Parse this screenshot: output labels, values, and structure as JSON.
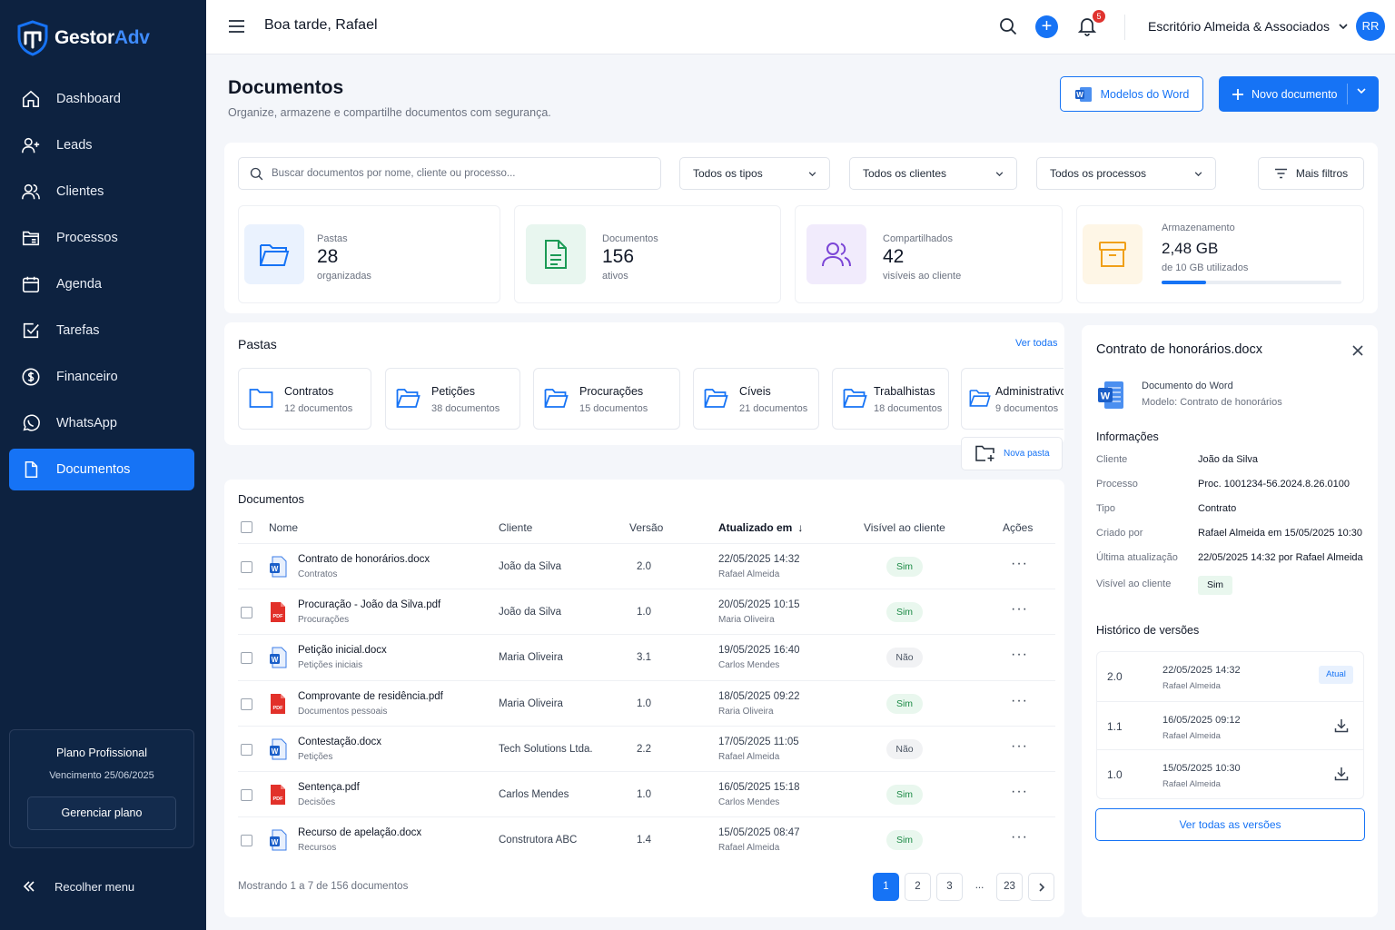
{
  "brand": {
    "name_a": "Gestor",
    "name_b": "Adv",
    "accent": "#1673f5",
    "sidebar_bg": "#0d2240"
  },
  "sidebar": {
    "items": [
      {
        "label": "Dashboard",
        "icon": "home-icon"
      },
      {
        "label": "Leads",
        "icon": "user-plus-icon"
      },
      {
        "label": "Clientes",
        "icon": "users-icon"
      },
      {
        "label": "Processos",
        "icon": "folder-icon"
      },
      {
        "label": "Agenda",
        "icon": "calendar-icon"
      },
      {
        "label": "Tarefas",
        "icon": "checkbox-icon"
      },
      {
        "label": "Financeiro",
        "icon": "dollar-icon"
      },
      {
        "label": "WhatsApp",
        "icon": "whatsapp-icon"
      },
      {
        "label": "Documentos",
        "icon": "document-icon",
        "active": true
      }
    ],
    "plan": {
      "title": "Plano Profissional",
      "due": "Vencimento 25/06/2025",
      "button": "Gerenciar plano"
    },
    "collapse": "Recolher menu"
  },
  "topbar": {
    "greeting": "Boa tarde, Rafael",
    "notifications": "5",
    "firm": "Escritório Almeida & Associados",
    "avatar": "RR"
  },
  "page": {
    "title": "Documentos",
    "subtitle": "Organize, armazene e compartilhe documentos com segurança.",
    "btn_word": "Modelos do Word",
    "btn_new": "Novo documento"
  },
  "filters": {
    "search_placeholder": "Buscar documentos por nome, cliente ou processo...",
    "types": "Todos os tipos",
    "clients": "Todos os clientes",
    "processes": "Todos os processos",
    "more": "Mais filtros"
  },
  "stats": [
    {
      "label": "Pastas",
      "value": "28",
      "sub": "organizadas"
    },
    {
      "label": "Documentos",
      "value": "156",
      "sub": "ativos"
    },
    {
      "label": "Compartilhados",
      "value": "42",
      "sub": "visíveis ao cliente"
    },
    {
      "label": "Armazenamento",
      "value": "2,48 GB",
      "sub": "de 10 GB utilizados",
      "progress": 0.248
    }
  ],
  "folders": {
    "title": "Pastas",
    "see_all": "Ver todas",
    "new_folder": "Nova pasta",
    "items": [
      {
        "name": "Contratos",
        "count": "12 documentos"
      },
      {
        "name": "Petições",
        "count": "38 documentos"
      },
      {
        "name": "Procurações",
        "count": "15 documentos"
      },
      {
        "name": "Cíveis",
        "count": "21 documentos"
      },
      {
        "name": "Trabalhistas",
        "count": "18 documentos"
      },
      {
        "name": "Administrativo",
        "count": "9 documentos"
      }
    ]
  },
  "documents": {
    "title": "Documentos",
    "columns": {
      "name": "Nome",
      "client": "Cliente",
      "version": "Versão",
      "updated": "Atualizado em",
      "visible": "Visível ao cliente",
      "actions": "Ações"
    },
    "rows": [
      {
        "name": "Contrato de honorários.docx",
        "folder": "Contratos",
        "type": "word",
        "client": "João da Silva",
        "version": "2.0",
        "date": "22/05/2025 14:32",
        "user": "Rafael Almeida",
        "visible": "Sim"
      },
      {
        "name": "Procuração - João da Silva.pdf",
        "folder": "Procurações",
        "type": "pdf",
        "client": "João da Silva",
        "version": "1.0",
        "date": "20/05/2025 10:15",
        "user": "Maria Oliveira",
        "visible": "Sim"
      },
      {
        "name": "Petição inicial.docx",
        "folder": "Petições iniciais",
        "type": "word",
        "client": "Maria Oliveira",
        "version": "3.1",
        "date": "19/05/2025 16:40",
        "user": "Carlos Mendes",
        "visible": "Não"
      },
      {
        "name": "Comprovante de residência.pdf",
        "folder": "Documentos pessoais",
        "type": "pdf",
        "client": "Maria Oliveira",
        "version": "1.0",
        "date": "18/05/2025 09:22",
        "user": "Raria Oliveira",
        "visible": "Sim"
      },
      {
        "name": "Contestação.docx",
        "folder": "Petições",
        "type": "word",
        "client": "Tech Solutions Ltda.",
        "version": "2.2",
        "date": "17/05/2025 11:05",
        "user": "Rafael Almeida",
        "visible": "Não"
      },
      {
        "name": "Sentença.pdf",
        "folder": "Decisões",
        "type": "pdf",
        "client": "Carlos Mendes",
        "version": "1.0",
        "date": "16/05/2025 15:18",
        "user": "Carlos Mendes",
        "visible": "Sim"
      },
      {
        "name": "Recurso de apelação.docx",
        "folder": "Recursos",
        "type": "word",
        "client": "Construtora ABC",
        "version": "1.4",
        "date": "15/05/2025 08:47",
        "user": "Rafael Almeida",
        "visible": "Sim"
      }
    ],
    "showing": "Mostrando 1 a 7 de 156 documentos",
    "pages": [
      "1",
      "2",
      "3",
      "...",
      "23"
    ]
  },
  "detail": {
    "title": "Contrato de honorários.docx",
    "kind": "Documento do Word",
    "model": "Modelo: Contrato de honorários",
    "info_title": "Informações",
    "info": [
      {
        "k": "Cliente",
        "v": "João da Silva"
      },
      {
        "k": "Processo",
        "v": "Proc. 1001234-56.2024.8.26.0100"
      },
      {
        "k": "Tipo",
        "v": "Contrato"
      },
      {
        "k": "Criado por",
        "v": "Rafael Almeida em 15/05/2025 10:30"
      },
      {
        "k": "Última atualização",
        "v": "22/05/2025 14:32 por Rafael Almeida"
      },
      {
        "k": "Visível ao cliente",
        "v": "Sim"
      }
    ],
    "history_title": "Histórico de versões",
    "history": [
      {
        "version": "2.0",
        "date": "22/05/2025 14:32",
        "user": "Rafael Almeida",
        "tag": "Atual"
      },
      {
        "version": "1.1",
        "date": "16/05/2025 09:12",
        "user": "Rafael Almeida"
      },
      {
        "version": "1.0",
        "date": "15/05/2025 10:30",
        "user": "Rafael Almeida"
      }
    ],
    "all_versions": "Ver todas as versões"
  }
}
